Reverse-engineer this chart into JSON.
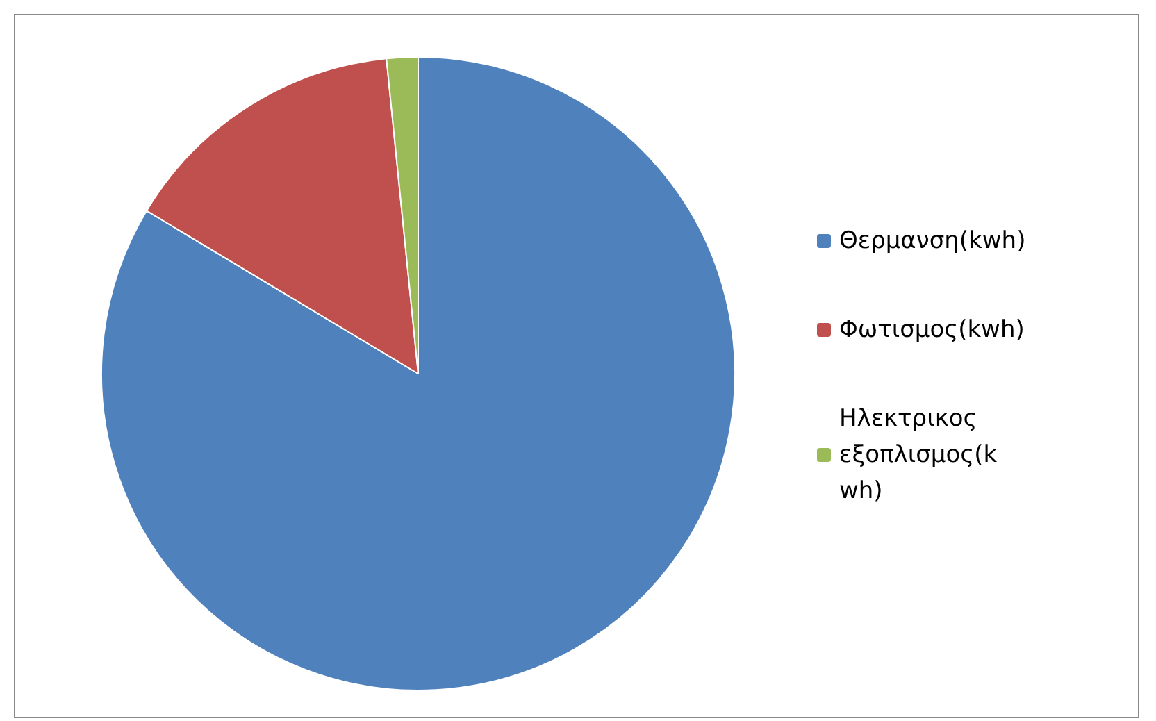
{
  "chart_data": {
    "type": "pie",
    "categories": [
      "Θερμανση(kwh)",
      "Φωτισμος(kwh)",
      "Ηλεκτρικος εξοπλισμος(kwh)"
    ],
    "values": [
      83.6,
      14.8,
      1.6
    ],
    "colors": [
      "#4f81bd",
      "#c0504d",
      "#9bbb59"
    ],
    "legend": "right"
  }
}
